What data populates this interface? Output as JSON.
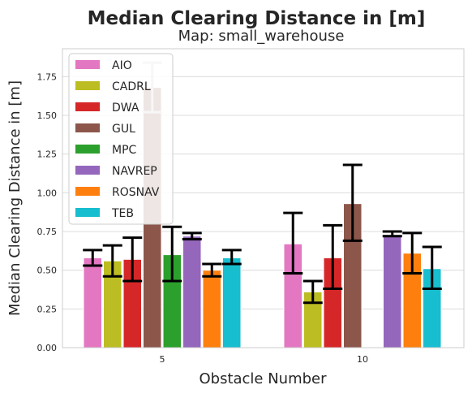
{
  "chart_data": {
    "type": "bar",
    "title": "Median Clearing Distance in [m]",
    "subtitle": "Map: small_warehouse",
    "xlabel": "Obstacle Number",
    "ylabel": "Median Clearing Distance in [m]",
    "categories": [
      "5",
      "10"
    ],
    "ylim": [
      0,
      1.93
    ],
    "yticks": [
      "0.00",
      "0.25",
      "0.50",
      "0.75",
      "1.00",
      "1.25",
      "1.50",
      "1.75"
    ],
    "grid": true,
    "legend_position": "top-left",
    "series": [
      {
        "name": "AIO",
        "color": "#e377c2",
        "values": [
          0.58,
          0.67
        ],
        "err_low": [
          0.53,
          0.48
        ],
        "err_high": [
          0.63,
          0.87
        ]
      },
      {
        "name": "CADRL",
        "color": "#bcbd22",
        "values": [
          0.56,
          0.36
        ],
        "err_low": [
          0.46,
          0.29
        ],
        "err_high": [
          0.66,
          0.43
        ]
      },
      {
        "name": "DWA",
        "color": "#d62728",
        "values": [
          0.57,
          0.58
        ],
        "err_low": [
          0.43,
          0.38
        ],
        "err_high": [
          0.71,
          0.79
        ]
      },
      {
        "name": "GUL",
        "color": "#8c564b",
        "values": [
          1.68,
          0.93
        ],
        "err_low": [
          1.52,
          0.69
        ],
        "err_high": [
          1.84,
          1.18
        ]
      },
      {
        "name": "MPC",
        "color": "#2ca02c",
        "values": [
          0.6,
          null
        ],
        "err_low": [
          0.43,
          null
        ],
        "err_high": [
          0.78,
          null
        ]
      },
      {
        "name": "NAVREP",
        "color": "#9467bd",
        "values": [
          0.72,
          0.73
        ],
        "err_low": [
          0.7,
          0.72
        ],
        "err_high": [
          0.74,
          0.75
        ]
      },
      {
        "name": "ROSNAV",
        "color": "#ff7f0e",
        "values": [
          0.5,
          0.61
        ],
        "err_low": [
          0.46,
          0.48
        ],
        "err_high": [
          0.54,
          0.74
        ]
      },
      {
        "name": "TEB",
        "color": "#17becf",
        "values": [
          0.58,
          0.51
        ],
        "err_low": [
          0.54,
          0.38
        ],
        "err_high": [
          0.63,
          0.65
        ]
      }
    ]
  }
}
